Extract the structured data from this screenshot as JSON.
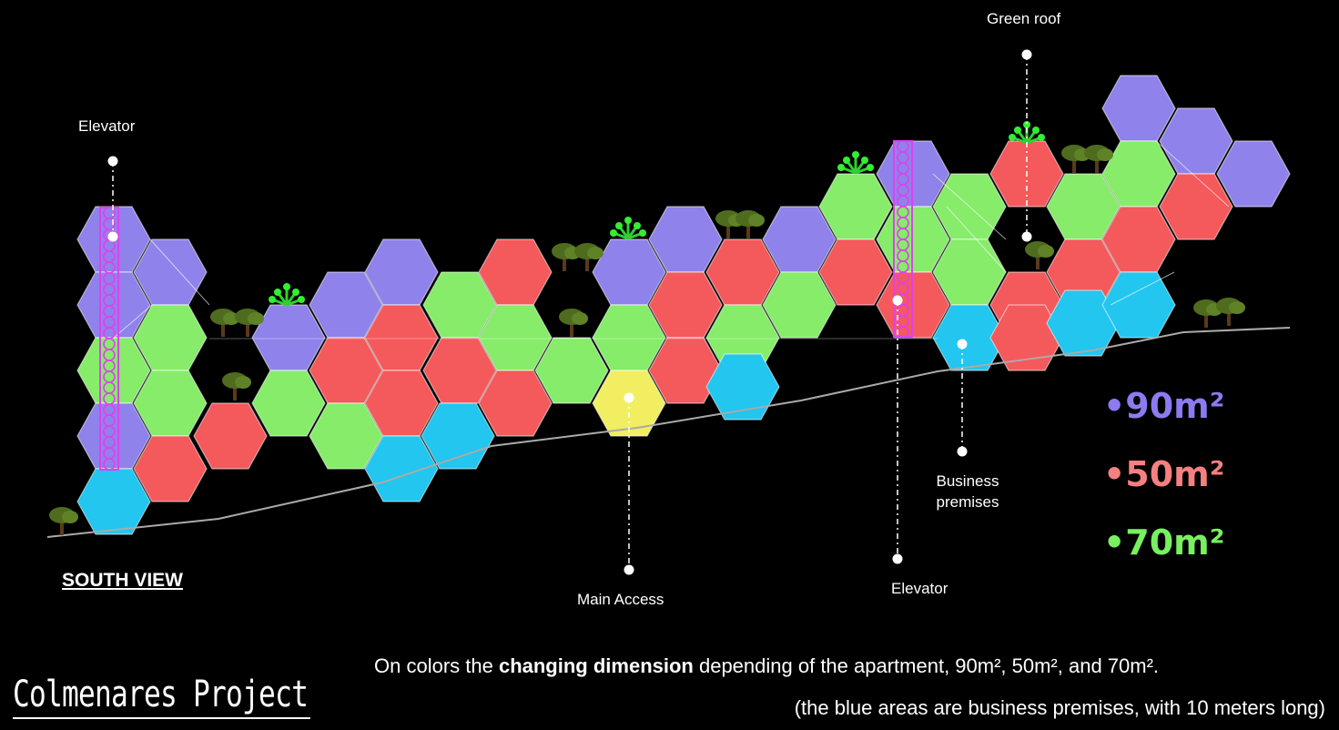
{
  "legend": {
    "items": [
      {
        "label": "•90m²",
        "color": "#8c7bf0"
      },
      {
        "label": "•50m²",
        "color": "#f48080"
      },
      {
        "label": "•70m²",
        "color": "#78f060"
      }
    ]
  },
  "colors": {
    "purple": "#8f82ea",
    "red": "#f4595c",
    "green": "#86ec6a",
    "blue": "#22c6ef",
    "yellow": "#f1ee62",
    "elevator": "#e040f0",
    "ground": "#aaaaaa"
  },
  "callouts": {
    "elevator_left": "Elevator",
    "green_roof": "Green roof",
    "business_premises_1": "Business",
    "business_premises_2": "premises",
    "main_access": "Main Access",
    "elevator_right": "Elevator"
  },
  "view_title": "SOUTH VIEW",
  "project_title": "Colmenares Project",
  "caption": {
    "line1_pre": "On colors the ",
    "line1_bold": "changing dimension",
    "line1_post": " depending of the apartment, 90m², 50m², and 70m².",
    "line2": "(the blue areas are business premises, with 10 meters long)"
  }
}
